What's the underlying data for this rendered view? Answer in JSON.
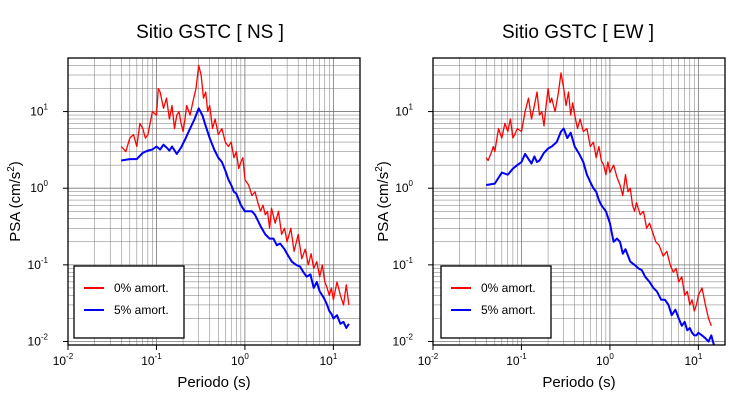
{
  "chart_data": [
    {
      "type": "line",
      "title": "Sitio GSTC [ NS ]",
      "xlabel": "Periodo (s)",
      "ylabel_main": "PSA (cm/s",
      "ylabel_exp": "2",
      "ylabel_close": ")",
      "xscale": "log",
      "yscale": "log",
      "xlim": [
        0.01,
        20
      ],
      "ylim": [
        0.009,
        50
      ],
      "grid": true,
      "legend_position": "bottom-left",
      "series": [
        {
          "name": "0% amort.",
          "color": "#ff0000",
          "x": [
            0.04,
            0.045,
            0.05,
            0.055,
            0.06,
            0.065,
            0.07,
            0.075,
            0.08,
            0.09,
            0.1,
            0.105,
            0.11,
            0.12,
            0.13,
            0.14,
            0.15,
            0.16,
            0.17,
            0.18,
            0.19,
            0.2,
            0.21,
            0.22,
            0.24,
            0.26,
            0.28,
            0.3,
            0.32,
            0.34,
            0.36,
            0.38,
            0.4,
            0.43,
            0.46,
            0.5,
            0.55,
            0.6,
            0.65,
            0.7,
            0.75,
            0.8,
            0.85,
            0.9,
            0.95,
            1.0,
            1.1,
            1.2,
            1.3,
            1.4,
            1.5,
            1.6,
            1.7,
            1.8,
            1.9,
            2.0,
            2.2,
            2.4,
            2.6,
            2.8,
            3.0,
            3.3,
            3.6,
            4.0,
            4.4,
            4.8,
            5.2,
            5.6,
            6.0,
            6.5,
            7.0,
            7.5,
            8.0,
            8.5,
            9.0,
            9.5,
            10,
            11,
            12,
            13,
            14,
            15
          ],
          "y": [
            3.5,
            3,
            4.5,
            5,
            3.5,
            7,
            6,
            4.5,
            5,
            10,
            9,
            20,
            18,
            11,
            15,
            8,
            12,
            6,
            9,
            10,
            7,
            5.5,
            8,
            12,
            9,
            14,
            20,
            40,
            30,
            15,
            18,
            10,
            12,
            6,
            8,
            5,
            6,
            4,
            3.5,
            4,
            2.5,
            3,
            1.8,
            2.2,
            2.5,
            1.3,
            1.1,
            0.8,
            0.9,
            0.65,
            0.5,
            0.6,
            0.45,
            0.5,
            0.3,
            0.55,
            0.35,
            0.5,
            0.25,
            0.3,
            0.2,
            0.3,
            0.15,
            0.25,
            0.12,
            0.16,
            0.1,
            0.14,
            0.09,
            0.11,
            0.07,
            0.1,
            0.06,
            0.05,
            0.04,
            0.05,
            0.035,
            0.06,
            0.04,
            0.03,
            0.055,
            0.03
          ]
        },
        {
          "name": "5% amort.",
          "color": "#0000ff",
          "x": [
            0.04,
            0.05,
            0.06,
            0.07,
            0.08,
            0.09,
            0.1,
            0.11,
            0.12,
            0.13,
            0.14,
            0.15,
            0.17,
            0.19,
            0.21,
            0.24,
            0.27,
            0.3,
            0.33,
            0.36,
            0.4,
            0.45,
            0.5,
            0.55,
            0.6,
            0.65,
            0.7,
            0.75,
            0.8,
            0.9,
            1.0,
            1.1,
            1.2,
            1.3,
            1.4,
            1.5,
            1.7,
            1.9,
            2.1,
            2.3,
            2.5,
            2.8,
            3.1,
            3.4,
            3.8,
            4.2,
            4.6,
            5,
            5.5,
            6,
            6.5,
            7,
            7.5,
            8,
            8.5,
            9,
            9.5,
            10,
            11,
            12,
            13,
            14,
            15
          ],
          "y": [
            2.3,
            2.4,
            2.4,
            2.9,
            3.1,
            3.2,
            3.5,
            3.2,
            3.7,
            3.4,
            3.1,
            3.5,
            2.8,
            3.4,
            4.3,
            6,
            8,
            11,
            9,
            6.5,
            4.5,
            3.2,
            2.5,
            2.2,
            1.7,
            1.3,
            1.1,
            0.9,
            0.85,
            0.6,
            0.5,
            0.5,
            0.5,
            0.45,
            0.38,
            0.32,
            0.25,
            0.22,
            0.22,
            0.18,
            0.19,
            0.16,
            0.13,
            0.11,
            0.1,
            0.095,
            0.08,
            0.07,
            0.075,
            0.05,
            0.06,
            0.045,
            0.04,
            0.035,
            0.03,
            0.025,
            0.023,
            0.02,
            0.022,
            0.017,
            0.018,
            0.015,
            0.017
          ]
        }
      ]
    },
    {
      "type": "line",
      "title": "Sitio GSTC [ EW ]",
      "xlabel": "Periodo (s)",
      "ylabel_main": "PSA (cm/s",
      "ylabel_exp": "2",
      "ylabel_close": ")",
      "xscale": "log",
      "yscale": "log",
      "xlim": [
        0.01,
        20
      ],
      "ylim": [
        0.009,
        50
      ],
      "grid": true,
      "legend_position": "bottom-left",
      "series": [
        {
          "name": "0% amort.",
          "color": "#ff0000",
          "x": [
            0.04,
            0.042,
            0.045,
            0.048,
            0.05,
            0.055,
            0.06,
            0.065,
            0.07,
            0.075,
            0.08,
            0.09,
            0.1,
            0.11,
            0.12,
            0.13,
            0.14,
            0.15,
            0.16,
            0.17,
            0.18,
            0.19,
            0.2,
            0.21,
            0.22,
            0.24,
            0.26,
            0.28,
            0.3,
            0.32,
            0.34,
            0.36,
            0.38,
            0.4,
            0.43,
            0.46,
            0.5,
            0.55,
            0.6,
            0.65,
            0.7,
            0.75,
            0.8,
            0.85,
            0.9,
            0.95,
            1.0,
            1.1,
            1.2,
            1.3,
            1.4,
            1.5,
            1.6,
            1.7,
            1.8,
            1.9,
            2.0,
            2.2,
            2.4,
            2.6,
            2.8,
            3.0,
            3.3,
            3.6,
            4.0,
            4.4,
            4.8,
            5.2,
            5.6,
            6.0,
            6.5,
            7.0,
            7.5,
            8.0,
            8.5,
            9.0,
            9.5,
            10,
            11,
            12,
            13,
            14
          ],
          "y": [
            2.5,
            2.3,
            2.8,
            3.5,
            3,
            6,
            4.5,
            7,
            5.5,
            8,
            4.5,
            6,
            5.5,
            10,
            15,
            8,
            12,
            18,
            9,
            10,
            6.5,
            12,
            20,
            13,
            15,
            10,
            17,
            32,
            20,
            12,
            18,
            9,
            13,
            9,
            6,
            8,
            5.5,
            6,
            3.5,
            4,
            2.5,
            3.5,
            2.3,
            2,
            1.5,
            2.2,
            1.6,
            2,
            1.4,
            1.1,
            0.8,
            1.5,
            0.9,
            1,
            0.6,
            0.5,
            0.65,
            0.45,
            0.5,
            0.3,
            0.35,
            0.28,
            0.2,
            0.18,
            0.13,
            0.15,
            0.1,
            0.08,
            0.09,
            0.06,
            0.07,
            0.04,
            0.045,
            0.03,
            0.035,
            0.025,
            0.03,
            0.04,
            0.05,
            0.03,
            0.02,
            0.016
          ]
        },
        {
          "name": "5% amort.",
          "color": "#0000ff",
          "x": [
            0.04,
            0.05,
            0.06,
            0.07,
            0.08,
            0.09,
            0.1,
            0.11,
            0.12,
            0.13,
            0.14,
            0.15,
            0.16,
            0.18,
            0.2,
            0.22,
            0.25,
            0.28,
            0.3,
            0.33,
            0.36,
            0.4,
            0.45,
            0.5,
            0.55,
            0.6,
            0.65,
            0.7,
            0.75,
            0.8,
            0.9,
            1.0,
            1.1,
            1.2,
            1.3,
            1.4,
            1.5,
            1.7,
            1.9,
            2.1,
            2.3,
            2.5,
            2.8,
            3.1,
            3.4,
            3.8,
            4.2,
            4.6,
            5,
            5.5,
            6,
            6.5,
            7,
            7.5,
            8,
            8.5,
            9,
            9.5,
            10,
            11,
            12,
            13,
            14,
            15
          ],
          "y": [
            1.1,
            1.15,
            1.6,
            1.5,
            1.8,
            2,
            2.2,
            2.8,
            2.4,
            2.1,
            2.6,
            2.2,
            2.3,
            2.9,
            3.3,
            3.5,
            4,
            5.5,
            6,
            4.5,
            5.3,
            3.5,
            2.8,
            2.2,
            1.5,
            1.2,
            1.0,
            0.9,
            0.7,
            0.6,
            0.5,
            0.35,
            0.2,
            0.22,
            0.2,
            0.14,
            0.16,
            0.11,
            0.1,
            0.09,
            0.085,
            0.07,
            0.06,
            0.05,
            0.045,
            0.035,
            0.035,
            0.03,
            0.022,
            0.026,
            0.02,
            0.016,
            0.018,
            0.014,
            0.015,
            0.013,
            0.012,
            0.012,
            0.013,
            0.012,
            0.011,
            0.01,
            0.012,
            0.009
          ]
        }
      ]
    }
  ]
}
